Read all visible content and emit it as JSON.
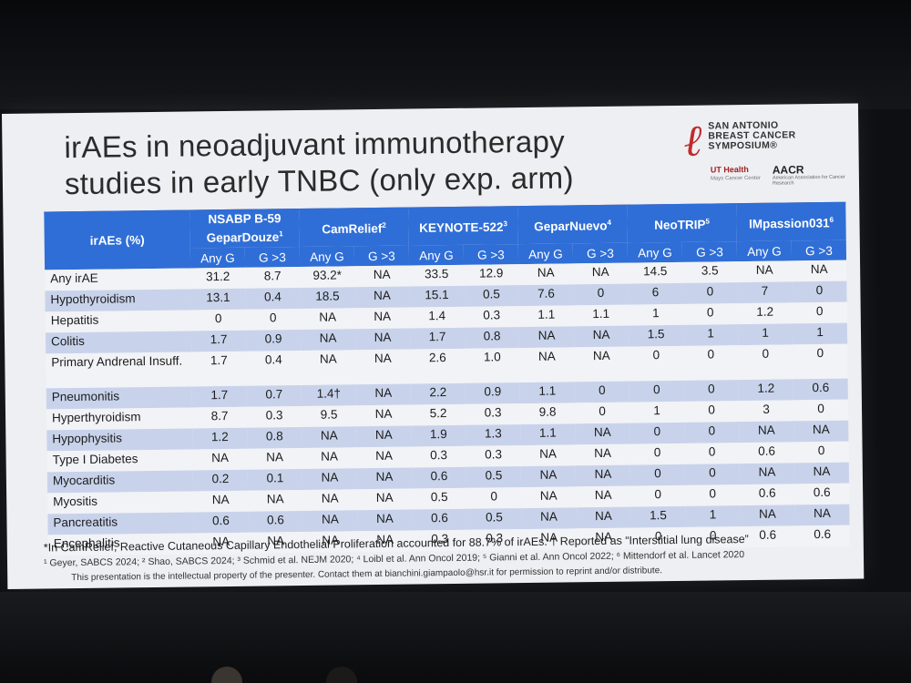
{
  "slide": {
    "title_line1": "irAEs in neoadjuvant immunotherapy",
    "title_line2": "studies in early TNBC (only exp. arm)",
    "logo": {
      "org_line1": "SAN ANTONIO",
      "org_line2": "BREAST CANCER",
      "org_line3": "SYMPOSIUM®",
      "ut": "UT Health",
      "ut_sub": "Mays Cancer Center",
      "aacr": "AACR",
      "aacr_sub": "American Association for Cancer Research"
    },
    "table": {
      "row_header": "irAEs (%)",
      "studies": [
        {
          "name": "NSABP B-59 GeparDouze",
          "sup": "1"
        },
        {
          "name": "CamRelief",
          "sup": "2"
        },
        {
          "name": "KEYNOTE-522",
          "sup": "3"
        },
        {
          "name": "GeparNuevo",
          "sup": "4"
        },
        {
          "name": "NeoTRIP",
          "sup": "5"
        },
        {
          "name": "IMpassion031",
          "sup": "6"
        }
      ],
      "sub_any": "Any G",
      "sub_g3": "G >3",
      "rows": [
        {
          "label": "Any irAE",
          "v": [
            "31.2",
            "8.7",
            "93.2*",
            "NA",
            "33.5",
            "12.9",
            "NA",
            "NA",
            "14.5",
            "3.5",
            "NA",
            "NA"
          ]
        },
        {
          "label": "Hypothyroidism",
          "v": [
            "13.1",
            "0.4",
            "18.5",
            "NA",
            "15.1",
            "0.5",
            "7.6",
            "0",
            "6",
            "0",
            "7",
            "0"
          ]
        },
        {
          "label": "Hepatitis",
          "v": [
            "0",
            "0",
            "NA",
            "NA",
            "1.4",
            "0.3",
            "1.1",
            "1.1",
            "1",
            "0",
            "1.2",
            "0"
          ]
        },
        {
          "label": "Colitis",
          "v": [
            "1.7",
            "0.9",
            "NA",
            "NA",
            "1.7",
            "0.8",
            "NA",
            "NA",
            "1.5",
            "1",
            "1",
            "1"
          ]
        },
        {
          "label": "Primary Andrenal Insuff.",
          "v": [
            "1.7",
            "0.4",
            "NA",
            "NA",
            "2.6",
            "1.0",
            "NA",
            "NA",
            "0",
            "0",
            "0",
            "0"
          ]
        },
        {
          "label": "Pneumonitis",
          "v": [
            "1.7",
            "0.7",
            "1.4†",
            "NA",
            "2.2",
            "0.9",
            "1.1",
            "0",
            "0",
            "0",
            "1.2",
            "0.6"
          ]
        },
        {
          "label": "Hyperthyroidism",
          "v": [
            "8.7",
            "0.3",
            "9.5",
            "NA",
            "5.2",
            "0.3",
            "9.8",
            "0",
            "1",
            "0",
            "3",
            "0"
          ]
        },
        {
          "label": "Hypophysitis",
          "v": [
            "1.2",
            "0.8",
            "NA",
            "NA",
            "1.9",
            "1.3",
            "1.1",
            "NA",
            "0",
            "0",
            "NA",
            "NA"
          ]
        },
        {
          "label": "Type I Diabetes",
          "v": [
            "NA",
            "NA",
            "NA",
            "NA",
            "0.3",
            "0.3",
            "NA",
            "NA",
            "0",
            "0",
            "0.6",
            "0"
          ]
        },
        {
          "label": "Myocarditis",
          "v": [
            "0.2",
            "0.1",
            "NA",
            "NA",
            "0.6",
            "0.5",
            "NA",
            "NA",
            "0",
            "0",
            "NA",
            "NA"
          ]
        },
        {
          "label": "Myositis",
          "v": [
            "NA",
            "NA",
            "NA",
            "NA",
            "0.5",
            "0",
            "NA",
            "NA",
            "0",
            "0",
            "0.6",
            "0.6"
          ]
        },
        {
          "label": "Pancreatitis",
          "v": [
            "0.6",
            "0.6",
            "NA",
            "NA",
            "0.6",
            "0.5",
            "NA",
            "NA",
            "1.5",
            "1",
            "NA",
            "NA"
          ]
        },
        {
          "label": "Encephalitis",
          "v": [
            "NA",
            "NA",
            "NA",
            "NA",
            "0.3",
            "0.3",
            "NA",
            "NA",
            "0",
            "0",
            "0.6",
            "0.6"
          ]
        }
      ]
    },
    "footnote": "*In CamRelief, Reactive Cutaneous Capillary Endothelial Proliferation accounted for 88.7% of irAEs. † Reported as “Interstitial lung disease”",
    "references": "¹ Geyer, SABCS 2024; ² Shao, SABCS 2024; ³ Schmid et al. NEJM 2020; ⁴ Loibl et al. Ann Oncol 2019; ⁵ Gianni et al. Ann Oncol 2022; ⁶ Mittendorf et al. Lancet 2020",
    "ip_note": "This presentation is the intellectual property of the presenter. Contact them at bianchini.giampaolo@hsr.it for permission to reprint and/or distribute."
  },
  "colors": {
    "header_blue": "#2f6ed6",
    "row_stripe": "#c8d3eb",
    "accent_red": "#c4463d"
  }
}
